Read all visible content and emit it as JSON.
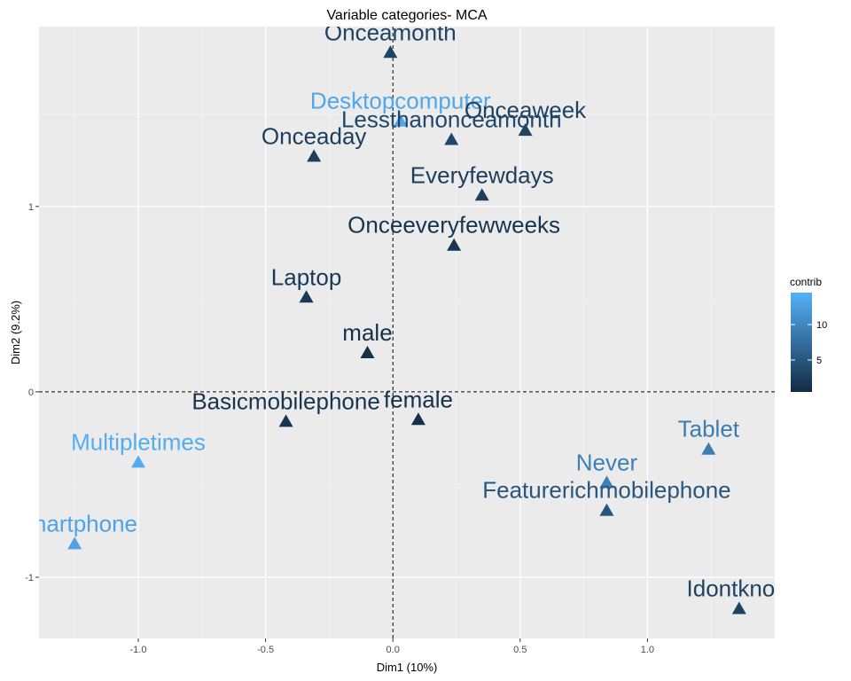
{
  "chart_data": {
    "type": "scatter",
    "title": "Variable categories- MCA",
    "xlabel": "Dim1 (10%)",
    "ylabel": "Dim2 (9.2%)",
    "xlim": [
      -1.39,
      1.5
    ],
    "ylim": [
      -1.33,
      1.97
    ],
    "x_ticks": [
      -1.0,
      -0.5,
      0.0,
      0.5,
      1.0
    ],
    "x_tick_labels": [
      "-1.0",
      "-0.5",
      "0.0",
      "0.5",
      "1.0"
    ],
    "y_ticks": [
      -1,
      0,
      1
    ],
    "y_tick_labels": [
      "-1",
      "0",
      "1"
    ],
    "grid": true,
    "reference_lines": {
      "x": 0,
      "y": 0
    },
    "legend": {
      "title": "contrib",
      "placement": "right",
      "range": [
        0.5,
        14.5
      ],
      "ticks": [
        5,
        10
      ],
      "tick_labels": [
        "5",
        "10"
      ],
      "low_color": "#132b43",
      "high_color": "#56b1f7"
    },
    "points": [
      {
        "label": "Onceamonth",
        "x": -0.01,
        "y": 1.83,
        "contrib": 3.0
      },
      {
        "label": "Desktopcomputer",
        "x": 0.03,
        "y": 1.46,
        "contrib": 13.5
      },
      {
        "label": "Lessthanonceamonth",
        "x": 0.23,
        "y": 1.36,
        "contrib": 3.5
      },
      {
        "label": "Onceaweek",
        "x": 0.52,
        "y": 1.41,
        "contrib": 3.0
      },
      {
        "label": "Onceaday",
        "x": -0.31,
        "y": 1.27,
        "contrib": 2.5
      },
      {
        "label": "Everyfewdays",
        "x": 0.35,
        "y": 1.06,
        "contrib": 2.5
      },
      {
        "label": "Onceeveryfewweeks",
        "x": 0.24,
        "y": 0.79,
        "contrib": 1.5
      },
      {
        "label": "Laptop",
        "x": -0.34,
        "y": 0.51,
        "contrib": 2.0
      },
      {
        "label": "male",
        "x": -0.1,
        "y": 0.21,
        "contrib": 1.0
      },
      {
        "label": "Basicmobilephone",
        "x": -0.42,
        "y": -0.16,
        "contrib": 1.5
      },
      {
        "label": "female",
        "x": 0.1,
        "y": -0.15,
        "contrib": 1.0
      },
      {
        "label": "Tablet",
        "x": 1.24,
        "y": -0.31,
        "contrib": 9.0
      },
      {
        "label": "Multipletimes",
        "x": -1.0,
        "y": -0.38,
        "contrib": 14.0
      },
      {
        "label": "Never",
        "x": 0.84,
        "y": -0.49,
        "contrib": 9.5
      },
      {
        "label": "Featurerichmobilephone",
        "x": 0.84,
        "y": -0.64,
        "contrib": 5.0
      },
      {
        "label": "Smartphone",
        "x": -1.25,
        "y": -0.82,
        "contrib": 13.0
      },
      {
        "label": "Idontknow",
        "x": 1.36,
        "y": -1.17,
        "contrib": 3.0
      }
    ]
  }
}
